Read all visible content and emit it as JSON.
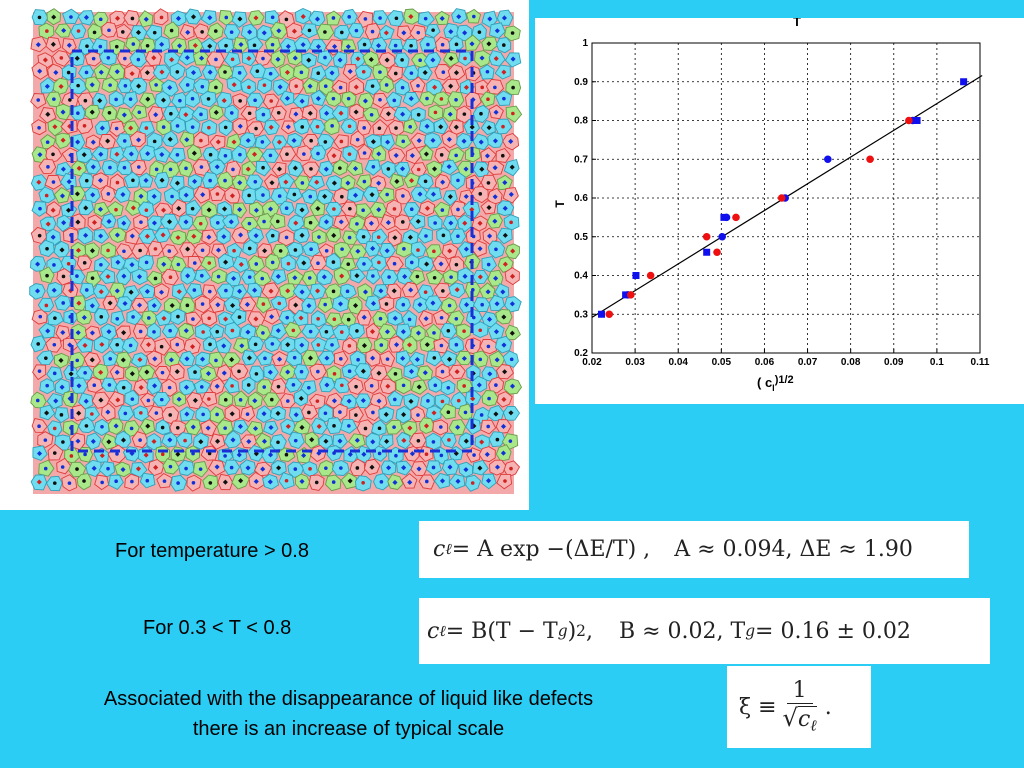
{
  "chart_data": {
    "type": "scatter",
    "title": "T",
    "xlabel": "( c",
    "xlabel_sub": "l",
    "xlabel_sup": ")1/2",
    "ylabel": "T",
    "xlim": [
      0.02,
      0.11
    ],
    "ylim": [
      0.2,
      1.0
    ],
    "xticks": [
      "0.02",
      "0.03",
      "0.04",
      "0.05",
      "0.06",
      "0.07",
      "0.08",
      "0.09",
      "0.1",
      "0.11"
    ],
    "yticks": [
      "0.2",
      "0.3",
      "0.4",
      "0.5",
      "0.6",
      "0.7",
      "0.8",
      "0.9",
      "1"
    ],
    "grid": true,
    "series": [
      {
        "color": "#1010ee",
        "marker": "square",
        "x": [
          0.0222,
          0.0278,
          0.0302,
          0.0466,
          0.0506,
          0.0954,
          0.1062
        ],
        "y": [
          0.3,
          0.35,
          0.4,
          0.46,
          0.55,
          0.8,
          0.9
        ]
      },
      {
        "color": "#1010ee",
        "marker": "circle",
        "x": [
          0.0283,
          0.0502,
          0.0512,
          0.0648,
          0.0747,
          0.0944
        ],
        "y": [
          0.35,
          0.5,
          0.55,
          0.6,
          0.7,
          0.8
        ]
      },
      {
        "color": "#ee1010",
        "marker": "circle",
        "x": [
          0.024,
          0.029,
          0.0336,
          0.0466,
          0.049,
          0.0534,
          0.064,
          0.0845,
          0.0935
        ],
        "y": [
          0.3,
          0.35,
          0.4,
          0.5,
          0.46,
          0.55,
          0.6,
          0.7,
          0.8
        ]
      }
    ],
    "fit_line": {
      "x": [
        0.02,
        0.1105
      ],
      "y": [
        0.292,
        0.916
      ]
    }
  },
  "captions": {
    "line1": "For temperature > 0.8",
    "line2": "For 0.3 < T < 0.8",
    "line3a": "Associated with the disappearance of liquid like defects",
    "line3b": "there is an increase of typical scale"
  },
  "formulas": {
    "f1_lhs": "c",
    "f1_sub": "ℓ",
    "f1_eq": " = A exp −(ΔE/T) ,",
    "f1_params": "A ≈ 0.094,  ΔE ≈ 1.90",
    "f2_lhs": "c",
    "f2_sub": "ℓ",
    "f2_eq": " = B(T − T",
    "f2_sub2": "g",
    "f2_close": ")",
    "f2_sup": "2",
    "f2_comma": " ,",
    "f2_params": "B ≈ 0.02,  T",
    "f2_params_sub": "g",
    "f2_params_rest": " = 0.16 ± 0.02",
    "f3_lhs": "ξ ≡",
    "f3_num": "1",
    "f3_den": "c",
    "f3_den_sub": "ℓ",
    "f3_end": "."
  },
  "voronoi_palette": [
    "#6fdcf0",
    "#f6a8a8",
    "#a8e88a",
    "#7fd8f4",
    "#f4b0b0"
  ]
}
